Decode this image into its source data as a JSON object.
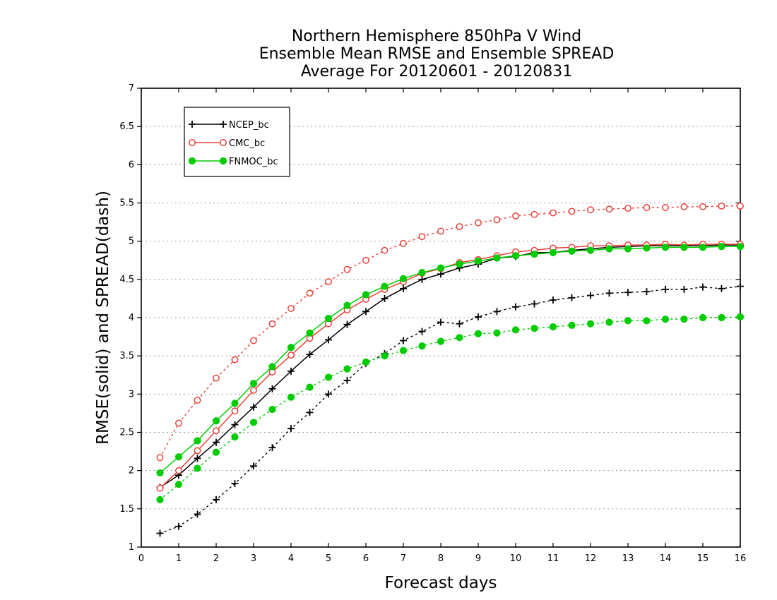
{
  "chart_data": {
    "type": "line",
    "title": [
      "Northern Hemisphere 850hPa V Wind",
      "Ensemble Mean RMSE and Ensemble SPREAD",
      "Average For 20120601 - 20120831"
    ],
    "xlabel": "Forecast days",
    "ylabel": "RMSE(solid) and SPREAD(dash)",
    "xlim": [
      0,
      16
    ],
    "ylim": [
      1,
      7
    ],
    "xticks": [
      0,
      1,
      2,
      3,
      4,
      5,
      6,
      7,
      8,
      9,
      10,
      11,
      12,
      13,
      14,
      15,
      16
    ],
    "yticks": [
      "1",
      "1.5",
      "2",
      "2.5",
      "3",
      "3.5",
      "4",
      "4.5",
      "5",
      "5.5",
      "6",
      "6.5",
      "7"
    ],
    "grid": true,
    "legend_position": "top-left",
    "x": [
      0.5,
      1,
      1.5,
      2,
      2.5,
      3,
      3.5,
      4,
      4.5,
      5,
      5.5,
      6,
      6.5,
      7,
      7.5,
      8,
      8.5,
      9,
      9.5,
      10,
      10.5,
      11,
      11.5,
      12,
      12.5,
      13,
      13.5,
      14,
      14.5,
      15,
      15.5,
      16
    ],
    "series": [
      {
        "name": "NCEP_bc",
        "color": "#000000",
        "marker": "plus",
        "rmse": [
          1.78,
          1.94,
          2.16,
          2.37,
          2.6,
          2.83,
          3.07,
          3.3,
          3.52,
          3.71,
          3.91,
          4.08,
          4.25,
          4.38,
          4.5,
          4.57,
          4.65,
          4.7,
          4.78,
          4.8,
          4.85,
          4.85,
          4.88,
          4.9,
          4.92,
          4.93,
          4.94,
          4.94,
          4.94,
          4.94,
          4.95,
          4.95
        ],
        "spread": [
          1.18,
          1.27,
          1.43,
          1.62,
          1.83,
          2.06,
          2.3,
          2.55,
          2.76,
          3.0,
          3.18,
          3.4,
          3.53,
          3.7,
          3.82,
          3.94,
          3.92,
          4.01,
          4.08,
          4.14,
          4.18,
          4.23,
          4.26,
          4.29,
          4.32,
          4.33,
          4.34,
          4.37,
          4.37,
          4.4,
          4.38,
          4.41
        ]
      },
      {
        "name": "CMC_bc",
        "color": "#e8403a",
        "marker": "open-circle",
        "rmse": [
          1.77,
          2.0,
          2.26,
          2.52,
          2.78,
          3.05,
          3.29,
          3.51,
          3.73,
          3.92,
          4.1,
          4.24,
          4.37,
          4.47,
          4.58,
          4.64,
          4.72,
          4.76,
          4.81,
          4.86,
          4.88,
          4.91,
          4.92,
          4.94,
          4.94,
          4.95,
          4.95,
          4.96,
          4.95,
          4.96,
          4.96,
          4.96
        ],
        "spread": [
          2.17,
          2.62,
          2.92,
          3.21,
          3.45,
          3.7,
          3.92,
          4.12,
          4.32,
          4.47,
          4.63,
          4.75,
          4.88,
          4.97,
          5.06,
          5.13,
          5.19,
          5.24,
          5.28,
          5.33,
          5.35,
          5.37,
          5.39,
          5.41,
          5.42,
          5.43,
          5.44,
          5.44,
          5.45,
          5.45,
          5.46,
          5.46
        ]
      },
      {
        "name": "FNMOC_bc",
        "color": "#00cc00",
        "marker": "filled-circle",
        "rmse": [
          1.97,
          2.18,
          2.39,
          2.65,
          2.88,
          3.14,
          3.36,
          3.61,
          3.8,
          3.99,
          4.16,
          4.3,
          4.41,
          4.51,
          4.59,
          4.65,
          4.7,
          4.74,
          4.78,
          4.81,
          4.83,
          4.85,
          4.87,
          4.88,
          4.9,
          4.9,
          4.91,
          4.92,
          4.92,
          4.92,
          4.93,
          4.93
        ],
        "spread": [
          1.62,
          1.82,
          2.03,
          2.24,
          2.44,
          2.63,
          2.8,
          2.96,
          3.09,
          3.22,
          3.33,
          3.42,
          3.5,
          3.57,
          3.63,
          3.69,
          3.74,
          3.79,
          3.8,
          3.84,
          3.86,
          3.88,
          3.9,
          3.92,
          3.94,
          3.96,
          3.96,
          3.98,
          3.98,
          4.0,
          4.0,
          4.01
        ]
      }
    ]
  }
}
